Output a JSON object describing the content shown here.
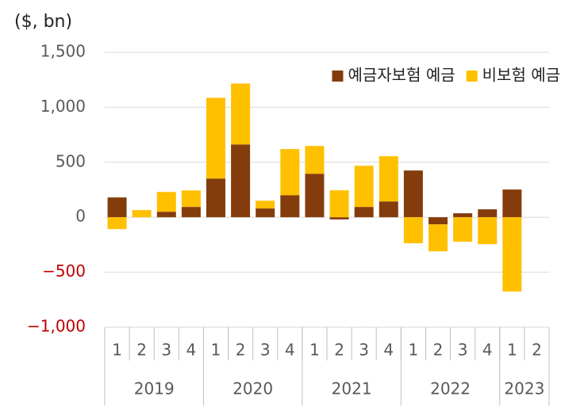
{
  "chart_data": {
    "type": "bar",
    "stacked": true,
    "y_axis_label": "($, bn)",
    "categories": [
      "1",
      "2",
      "3",
      "4",
      "1",
      "2",
      "3",
      "4",
      "1",
      "2",
      "3",
      "4",
      "1",
      "2",
      "3",
      "4",
      "1",
      "2"
    ],
    "x_groups": [
      {
        "label": "2019",
        "count": 4
      },
      {
        "label": "2020",
        "count": 4
      },
      {
        "label": "2021",
        "count": 4
      },
      {
        "label": "2022",
        "count": 4
      },
      {
        "label": "2023",
        "count": 2
      }
    ],
    "series": [
      {
        "name": "예금자보험 예금",
        "color": "#843c0c",
        "values": [
          180,
          0,
          50,
          94,
          352,
          662,
          80,
          200,
          395,
          -20,
          94,
          144,
          425,
          -65,
          36,
          72,
          252,
          null
        ]
      },
      {
        "name": "비보험 예금",
        "color": "#ffc000",
        "values": [
          -108,
          65,
          180,
          150,
          734,
          554,
          70,
          420,
          253,
          245,
          374,
          411,
          -237,
          -245,
          -223,
          -245,
          -676,
          null
        ]
      }
    ],
    "ylim": [
      -1000,
      1500
    ],
    "yticks": [
      {
        "value": -1000,
        "label": "−1,000"
      },
      {
        "value": -500,
        "label": "−500"
      },
      0,
      500,
      {
        "value": 1000,
        "label": "1,000"
      },
      {
        "value": 1500,
        "label": "1,500"
      }
    ],
    "negative_tick_color": "#c00000",
    "grid": true,
    "legend_position": "top-right"
  }
}
